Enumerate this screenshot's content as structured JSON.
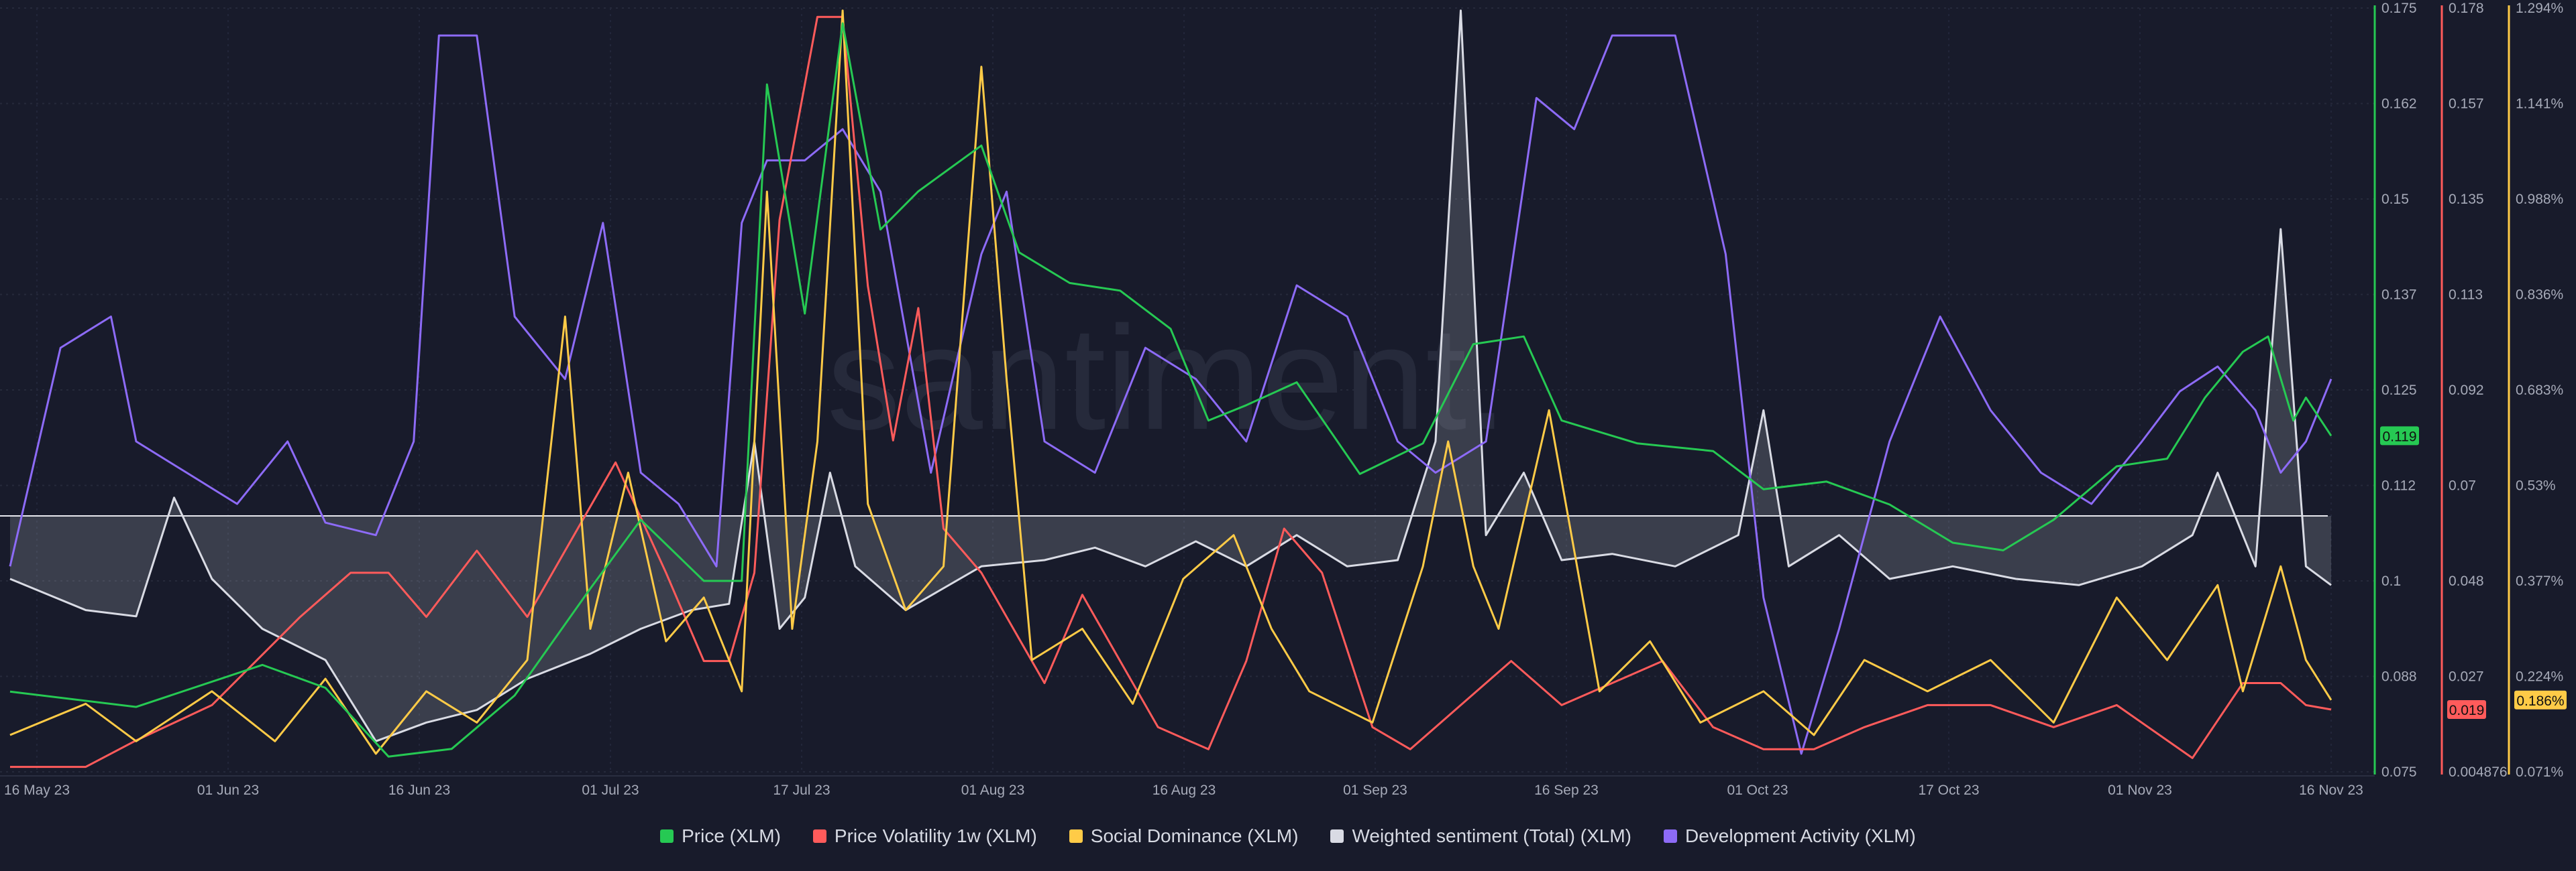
{
  "watermark": "santiment.",
  "chart_data": {
    "type": "line",
    "x_ticks": [
      "16 May 23",
      "01 Jun 23",
      "16 Jun 23",
      "01 Jul 23",
      "17 Jul 23",
      "01 Aug 23",
      "16 Aug 23",
      "01 Sep 23",
      "16 Sep 23",
      "01 Oct 23",
      "17 Oct 23",
      "01 Nov 23",
      "16 Nov 23"
    ],
    "x_range": [
      "2023-05-16",
      "2023-11-16"
    ],
    "axes": {
      "price": {
        "ticks": [
          "0.175",
          "0.162",
          "0.15",
          "0.137",
          "0.125",
          "0.112",
          "0.1",
          "0.088",
          "0.075"
        ],
        "range": [
          0.075,
          0.175
        ],
        "current": "0.119",
        "color": "#26c953"
      },
      "volatility": {
        "ticks": [
          "0.178",
          "0.157",
          "0.135",
          "0.113",
          "0.092",
          "0.07",
          "0.048",
          "0.027",
          "0.004876"
        ],
        "range": [
          0.004876,
          0.178
        ],
        "current": "0.019",
        "color": "#ff5b5b"
      },
      "dominance": {
        "ticks": [
          "1.294%",
          "1.141%",
          "0.988%",
          "0.836%",
          "0.683%",
          "0.53%",
          "0.377%",
          "0.224%",
          "0.071%"
        ],
        "range": [
          0.071,
          1.294
        ],
        "current": "0.186%",
        "color": "#ffcb47"
      }
    },
    "series": [
      {
        "name": "Price (XLM)",
        "color": "#26c953",
        "axis": "price",
        "points": [
          [
            "2023-05-16",
            0.0855
          ],
          [
            "2023-05-26",
            0.0835
          ],
          [
            "2023-06-05",
            0.089
          ],
          [
            "2023-06-10",
            0.086
          ],
          [
            "2023-06-15",
            0.077
          ],
          [
            "2023-06-20",
            0.078
          ],
          [
            "2023-06-25",
            0.085
          ],
          [
            "2023-07-01",
            0.099
          ],
          [
            "2023-07-05",
            0.108
          ],
          [
            "2023-07-10",
            0.1
          ],
          [
            "2023-07-13",
            0.1
          ],
          [
            "2023-07-15",
            0.165
          ],
          [
            "2023-07-18",
            0.135
          ],
          [
            "2023-07-21",
            0.173
          ],
          [
            "2023-07-24",
            0.146
          ],
          [
            "2023-07-27",
            0.151
          ],
          [
            "2023-08-01",
            0.157
          ],
          [
            "2023-08-04",
            0.143
          ],
          [
            "2023-08-08",
            0.139
          ],
          [
            "2023-08-12",
            0.138
          ],
          [
            "2023-08-16",
            0.133
          ],
          [
            "2023-08-19",
            0.121
          ],
          [
            "2023-08-22",
            0.123
          ],
          [
            "2023-08-26",
            0.126
          ],
          [
            "2023-08-31",
            0.114
          ],
          [
            "2023-09-05",
            0.118
          ],
          [
            "2023-09-09",
            0.131
          ],
          [
            "2023-09-13",
            0.132
          ],
          [
            "2023-09-16",
            0.121
          ],
          [
            "2023-09-22",
            0.118
          ],
          [
            "2023-09-28",
            0.117
          ],
          [
            "2023-10-02",
            0.112
          ],
          [
            "2023-10-07",
            0.113
          ],
          [
            "2023-10-12",
            0.11
          ],
          [
            "2023-10-17",
            0.105
          ],
          [
            "2023-10-21",
            0.104
          ],
          [
            "2023-10-25",
            0.108
          ],
          [
            "2023-10-30",
            0.115
          ],
          [
            "2023-11-03",
            0.116
          ],
          [
            "2023-11-06",
            0.124
          ],
          [
            "2023-11-09",
            0.13
          ],
          [
            "2023-11-11",
            0.132
          ],
          [
            "2023-11-13",
            0.121
          ],
          [
            "2023-11-14",
            0.124
          ],
          [
            "2023-11-16",
            0.119
          ]
        ]
      },
      {
        "name": "Price Volatility 1w (XLM)",
        "color": "#ff5b5b",
        "axis": "volatility",
        "points": [
          [
            "2023-05-16",
            0.006
          ],
          [
            "2023-05-22",
            0.006
          ],
          [
            "2023-05-26",
            0.012
          ],
          [
            "2023-06-01",
            0.02
          ],
          [
            "2023-06-08",
            0.04
          ],
          [
            "2023-06-12",
            0.05
          ],
          [
            "2023-06-15",
            0.05
          ],
          [
            "2023-06-18",
            0.04
          ],
          [
            "2023-06-22",
            0.055
          ],
          [
            "2023-06-26",
            0.04
          ],
          [
            "2023-06-30",
            0.06
          ],
          [
            "2023-07-03",
            0.075
          ],
          [
            "2023-07-07",
            0.05
          ],
          [
            "2023-07-10",
            0.03
          ],
          [
            "2023-07-12",
            0.03
          ],
          [
            "2023-07-14",
            0.05
          ],
          [
            "2023-07-16",
            0.13
          ],
          [
            "2023-07-19",
            0.176
          ],
          [
            "2023-07-21",
            0.176
          ],
          [
            "2023-07-23",
            0.115
          ],
          [
            "2023-07-25",
            0.08
          ],
          [
            "2023-07-27",
            0.11
          ],
          [
            "2023-07-29",
            0.06
          ],
          [
            "2023-08-01",
            0.05
          ],
          [
            "2023-08-03",
            0.04
          ],
          [
            "2023-08-06",
            0.025
          ],
          [
            "2023-08-09",
            0.045
          ],
          [
            "2023-08-12",
            0.03
          ],
          [
            "2023-08-15",
            0.015
          ],
          [
            "2023-08-19",
            0.01
          ],
          [
            "2023-08-22",
            0.03
          ],
          [
            "2023-08-25",
            0.06
          ],
          [
            "2023-08-28",
            0.05
          ],
          [
            "2023-09-01",
            0.015
          ],
          [
            "2023-09-04",
            0.01
          ],
          [
            "2023-09-08",
            0.02
          ],
          [
            "2023-09-12",
            0.03
          ],
          [
            "2023-09-16",
            0.02
          ],
          [
            "2023-09-20",
            0.025
          ],
          [
            "2023-09-24",
            0.03
          ],
          [
            "2023-09-28",
            0.015
          ],
          [
            "2023-10-02",
            0.01
          ],
          [
            "2023-10-06",
            0.01
          ],
          [
            "2023-10-10",
            0.015
          ],
          [
            "2023-10-15",
            0.02
          ],
          [
            "2023-10-20",
            0.02
          ],
          [
            "2023-10-25",
            0.015
          ],
          [
            "2023-10-30",
            0.02
          ],
          [
            "2023-11-05",
            0.008
          ],
          [
            "2023-11-09",
            0.025
          ],
          [
            "2023-11-12",
            0.025
          ],
          [
            "2023-11-14",
            0.02
          ],
          [
            "2023-11-16",
            0.019
          ]
        ]
      },
      {
        "name": "Social Dominance (XLM)",
        "color": "#ffcb47",
        "axis": "dominance",
        "points": [
          [
            "2023-05-16",
            0.13
          ],
          [
            "2023-05-22",
            0.18
          ],
          [
            "2023-05-26",
            0.12
          ],
          [
            "2023-06-01",
            0.2
          ],
          [
            "2023-06-06",
            0.12
          ],
          [
            "2023-06-10",
            0.22
          ],
          [
            "2023-06-14",
            0.1
          ],
          [
            "2023-06-18",
            0.2
          ],
          [
            "2023-06-22",
            0.15
          ],
          [
            "2023-06-26",
            0.25
          ],
          [
            "2023-06-29",
            0.8
          ],
          [
            "2023-07-01",
            0.3
          ],
          [
            "2023-07-04",
            0.55
          ],
          [
            "2023-07-07",
            0.28
          ],
          [
            "2023-07-10",
            0.35
          ],
          [
            "2023-07-13",
            0.2
          ],
          [
            "2023-07-15",
            1.0
          ],
          [
            "2023-07-17",
            0.3
          ],
          [
            "2023-07-19",
            0.6
          ],
          [
            "2023-07-21",
            1.29
          ],
          [
            "2023-07-23",
            0.5
          ],
          [
            "2023-07-26",
            0.33
          ],
          [
            "2023-07-29",
            0.4
          ],
          [
            "2023-08-01",
            1.2
          ],
          [
            "2023-08-03",
            0.7
          ],
          [
            "2023-08-05",
            0.25
          ],
          [
            "2023-08-09",
            0.3
          ],
          [
            "2023-08-13",
            0.18
          ],
          [
            "2023-08-17",
            0.38
          ],
          [
            "2023-08-21",
            0.45
          ],
          [
            "2023-08-24",
            0.3
          ],
          [
            "2023-08-27",
            0.2
          ],
          [
            "2023-09-01",
            0.15
          ],
          [
            "2023-09-05",
            0.4
          ],
          [
            "2023-09-07",
            0.6
          ],
          [
            "2023-09-09",
            0.4
          ],
          [
            "2023-09-11",
            0.3
          ],
          [
            "2023-09-15",
            0.65
          ],
          [
            "2023-09-19",
            0.2
          ],
          [
            "2023-09-23",
            0.28
          ],
          [
            "2023-09-27",
            0.15
          ],
          [
            "2023-10-02",
            0.2
          ],
          [
            "2023-10-06",
            0.13
          ],
          [
            "2023-10-10",
            0.25
          ],
          [
            "2023-10-15",
            0.2
          ],
          [
            "2023-10-20",
            0.25
          ],
          [
            "2023-10-25",
            0.15
          ],
          [
            "2023-10-30",
            0.35
          ],
          [
            "2023-11-03",
            0.25
          ],
          [
            "2023-11-07",
            0.37
          ],
          [
            "2023-11-09",
            0.2
          ],
          [
            "2023-11-12",
            0.4
          ],
          [
            "2023-11-14",
            0.25
          ],
          [
            "2023-11-16",
            0.186
          ]
        ]
      },
      {
        "name": "Weighted sentiment (Total) (XLM)",
        "color": "#d9dbe4",
        "axis": "dominance",
        "points": [
          [
            "2023-05-16",
            0.38
          ],
          [
            "2023-05-22",
            0.33
          ],
          [
            "2023-05-26",
            0.32
          ],
          [
            "2023-05-29",
            0.51
          ],
          [
            "2023-06-01",
            0.38
          ],
          [
            "2023-06-05",
            0.3
          ],
          [
            "2023-06-10",
            0.25
          ],
          [
            "2023-06-14",
            0.12
          ],
          [
            "2023-06-18",
            0.15
          ],
          [
            "2023-06-22",
            0.17
          ],
          [
            "2023-06-26",
            0.22
          ],
          [
            "2023-07-01",
            0.26
          ],
          [
            "2023-07-05",
            0.3
          ],
          [
            "2023-07-09",
            0.33
          ],
          [
            "2023-07-12",
            0.34
          ],
          [
            "2023-07-14",
            0.6
          ],
          [
            "2023-07-16",
            0.3
          ],
          [
            "2023-07-18",
            0.35
          ],
          [
            "2023-07-20",
            0.55
          ],
          [
            "2023-07-22",
            0.4
          ],
          [
            "2023-07-26",
            0.33
          ],
          [
            "2023-08-01",
            0.4
          ],
          [
            "2023-08-06",
            0.41
          ],
          [
            "2023-08-10",
            0.43
          ],
          [
            "2023-08-14",
            0.4
          ],
          [
            "2023-08-18",
            0.44
          ],
          [
            "2023-08-22",
            0.4
          ],
          [
            "2023-08-26",
            0.45
          ],
          [
            "2023-08-30",
            0.4
          ],
          [
            "2023-09-03",
            0.41
          ],
          [
            "2023-09-06",
            0.6
          ],
          [
            "2023-09-08",
            1.29
          ],
          [
            "2023-09-10",
            0.45
          ],
          [
            "2023-09-13",
            0.55
          ],
          [
            "2023-09-16",
            0.41
          ],
          [
            "2023-09-20",
            0.42
          ],
          [
            "2023-09-25",
            0.4
          ],
          [
            "2023-09-30",
            0.45
          ],
          [
            "2023-10-02",
            0.65
          ],
          [
            "2023-10-04",
            0.4
          ],
          [
            "2023-10-08",
            0.45
          ],
          [
            "2023-10-12",
            0.38
          ],
          [
            "2023-10-17",
            0.4
          ],
          [
            "2023-10-22",
            0.38
          ],
          [
            "2023-10-27",
            0.37
          ],
          [
            "2023-11-01",
            0.4
          ],
          [
            "2023-11-05",
            0.45
          ],
          [
            "2023-11-07",
            0.55
          ],
          [
            "2023-11-10",
            0.4
          ],
          [
            "2023-11-12",
            0.94
          ],
          [
            "2023-11-14",
            0.4
          ],
          [
            "2023-11-16",
            0.37
          ]
        ]
      },
      {
        "name": "Development Activity (XLM)",
        "color": "#8d6bf7",
        "axis": "dominance",
        "points": [
          [
            "2023-05-16",
            0.4
          ],
          [
            "2023-05-20",
            0.75
          ],
          [
            "2023-05-24",
            0.8
          ],
          [
            "2023-05-26",
            0.6
          ],
          [
            "2023-05-30",
            0.55
          ],
          [
            "2023-06-03",
            0.5
          ],
          [
            "2023-06-07",
            0.6
          ],
          [
            "2023-06-10",
            0.47
          ],
          [
            "2023-06-14",
            0.45
          ],
          [
            "2023-06-17",
            0.6
          ],
          [
            "2023-06-19",
            1.25
          ],
          [
            "2023-06-22",
            1.25
          ],
          [
            "2023-06-25",
            0.8
          ],
          [
            "2023-06-29",
            0.7
          ],
          [
            "2023-07-02",
            0.95
          ],
          [
            "2023-07-05",
            0.55
          ],
          [
            "2023-07-08",
            0.5
          ],
          [
            "2023-07-11",
            0.4
          ],
          [
            "2023-07-13",
            0.95
          ],
          [
            "2023-07-15",
            1.05
          ],
          [
            "2023-07-18",
            1.05
          ],
          [
            "2023-07-21",
            1.1
          ],
          [
            "2023-07-24",
            1.0
          ],
          [
            "2023-07-28",
            0.55
          ],
          [
            "2023-08-01",
            0.9
          ],
          [
            "2023-08-03",
            1.0
          ],
          [
            "2023-08-06",
            0.6
          ],
          [
            "2023-08-10",
            0.55
          ],
          [
            "2023-08-14",
            0.75
          ],
          [
            "2023-08-18",
            0.7
          ],
          [
            "2023-08-22",
            0.6
          ],
          [
            "2023-08-26",
            0.85
          ],
          [
            "2023-08-30",
            0.8
          ],
          [
            "2023-09-03",
            0.6
          ],
          [
            "2023-09-06",
            0.55
          ],
          [
            "2023-09-10",
            0.6
          ],
          [
            "2023-09-14",
            1.15
          ],
          [
            "2023-09-17",
            1.1
          ],
          [
            "2023-09-20",
            1.25
          ],
          [
            "2023-09-25",
            1.25
          ],
          [
            "2023-09-29",
            0.9
          ],
          [
            "2023-10-02",
            0.35
          ],
          [
            "2023-10-05",
            0.1
          ],
          [
            "2023-10-08",
            0.3
          ],
          [
            "2023-10-12",
            0.6
          ],
          [
            "2023-10-16",
            0.8
          ],
          [
            "2023-10-20",
            0.65
          ],
          [
            "2023-10-24",
            0.55
          ],
          [
            "2023-10-28",
            0.5
          ],
          [
            "2023-11-01",
            0.6
          ],
          [
            "2023-11-04",
            0.68
          ],
          [
            "2023-11-07",
            0.72
          ],
          [
            "2023-11-10",
            0.65
          ],
          [
            "2023-11-12",
            0.55
          ],
          [
            "2023-11-14",
            0.6
          ],
          [
            "2023-11-16",
            0.7
          ]
        ]
      }
    ]
  }
}
